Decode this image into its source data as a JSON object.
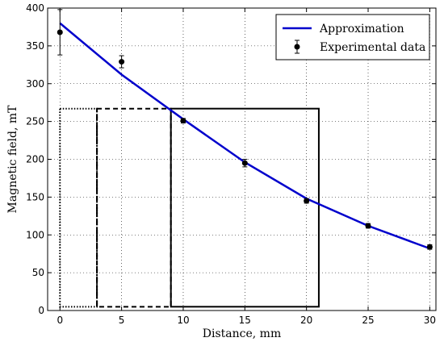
{
  "chart_data": {
    "type": "line",
    "title": "",
    "xlabel": "Distance, mm",
    "ylabel": "Magnetic field, mT",
    "xlim": [
      -1,
      30.5
    ],
    "ylim": [
      0,
      400
    ],
    "xticks": [
      0,
      5,
      10,
      15,
      20,
      25,
      30
    ],
    "yticks": [
      0,
      50,
      100,
      150,
      200,
      250,
      300,
      350,
      400
    ],
    "grid": true,
    "grid_style": "dotted",
    "legend_position": "top-right",
    "series": [
      {
        "name": "Approximation",
        "kind": "line",
        "color": "#0000cc",
        "x": [
          0,
          5,
          10,
          15,
          20,
          25,
          30
        ],
        "y": [
          380,
          312,
          253,
          196,
          148,
          112,
          82
        ]
      },
      {
        "name": "Experimental data",
        "kind": "errorbar",
        "color": "#000000",
        "x": [
          0,
          5,
          10,
          15,
          20,
          25,
          30
        ],
        "y": [
          368,
          329,
          251,
          195,
          145,
          112,
          84
        ],
        "yerr": [
          30,
          8,
          3,
          5,
          3,
          3,
          3
        ]
      }
    ],
    "annotations": [
      {
        "kind": "rectangle",
        "style": "dotted",
        "x0": 0,
        "x1": 3,
        "y0": 5,
        "y1": 267
      },
      {
        "kind": "rectangle",
        "style": "dashed",
        "x0": 3,
        "x1": 9,
        "y0": 5,
        "y1": 267
      },
      {
        "kind": "line",
        "style": "dash-dot",
        "x0": 3,
        "x1": 3,
        "y0": 5,
        "y1": 267
      },
      {
        "kind": "rectangle",
        "style": "solid",
        "x0": 9,
        "x1": 21,
        "y0": 5,
        "y1": 267
      }
    ]
  }
}
